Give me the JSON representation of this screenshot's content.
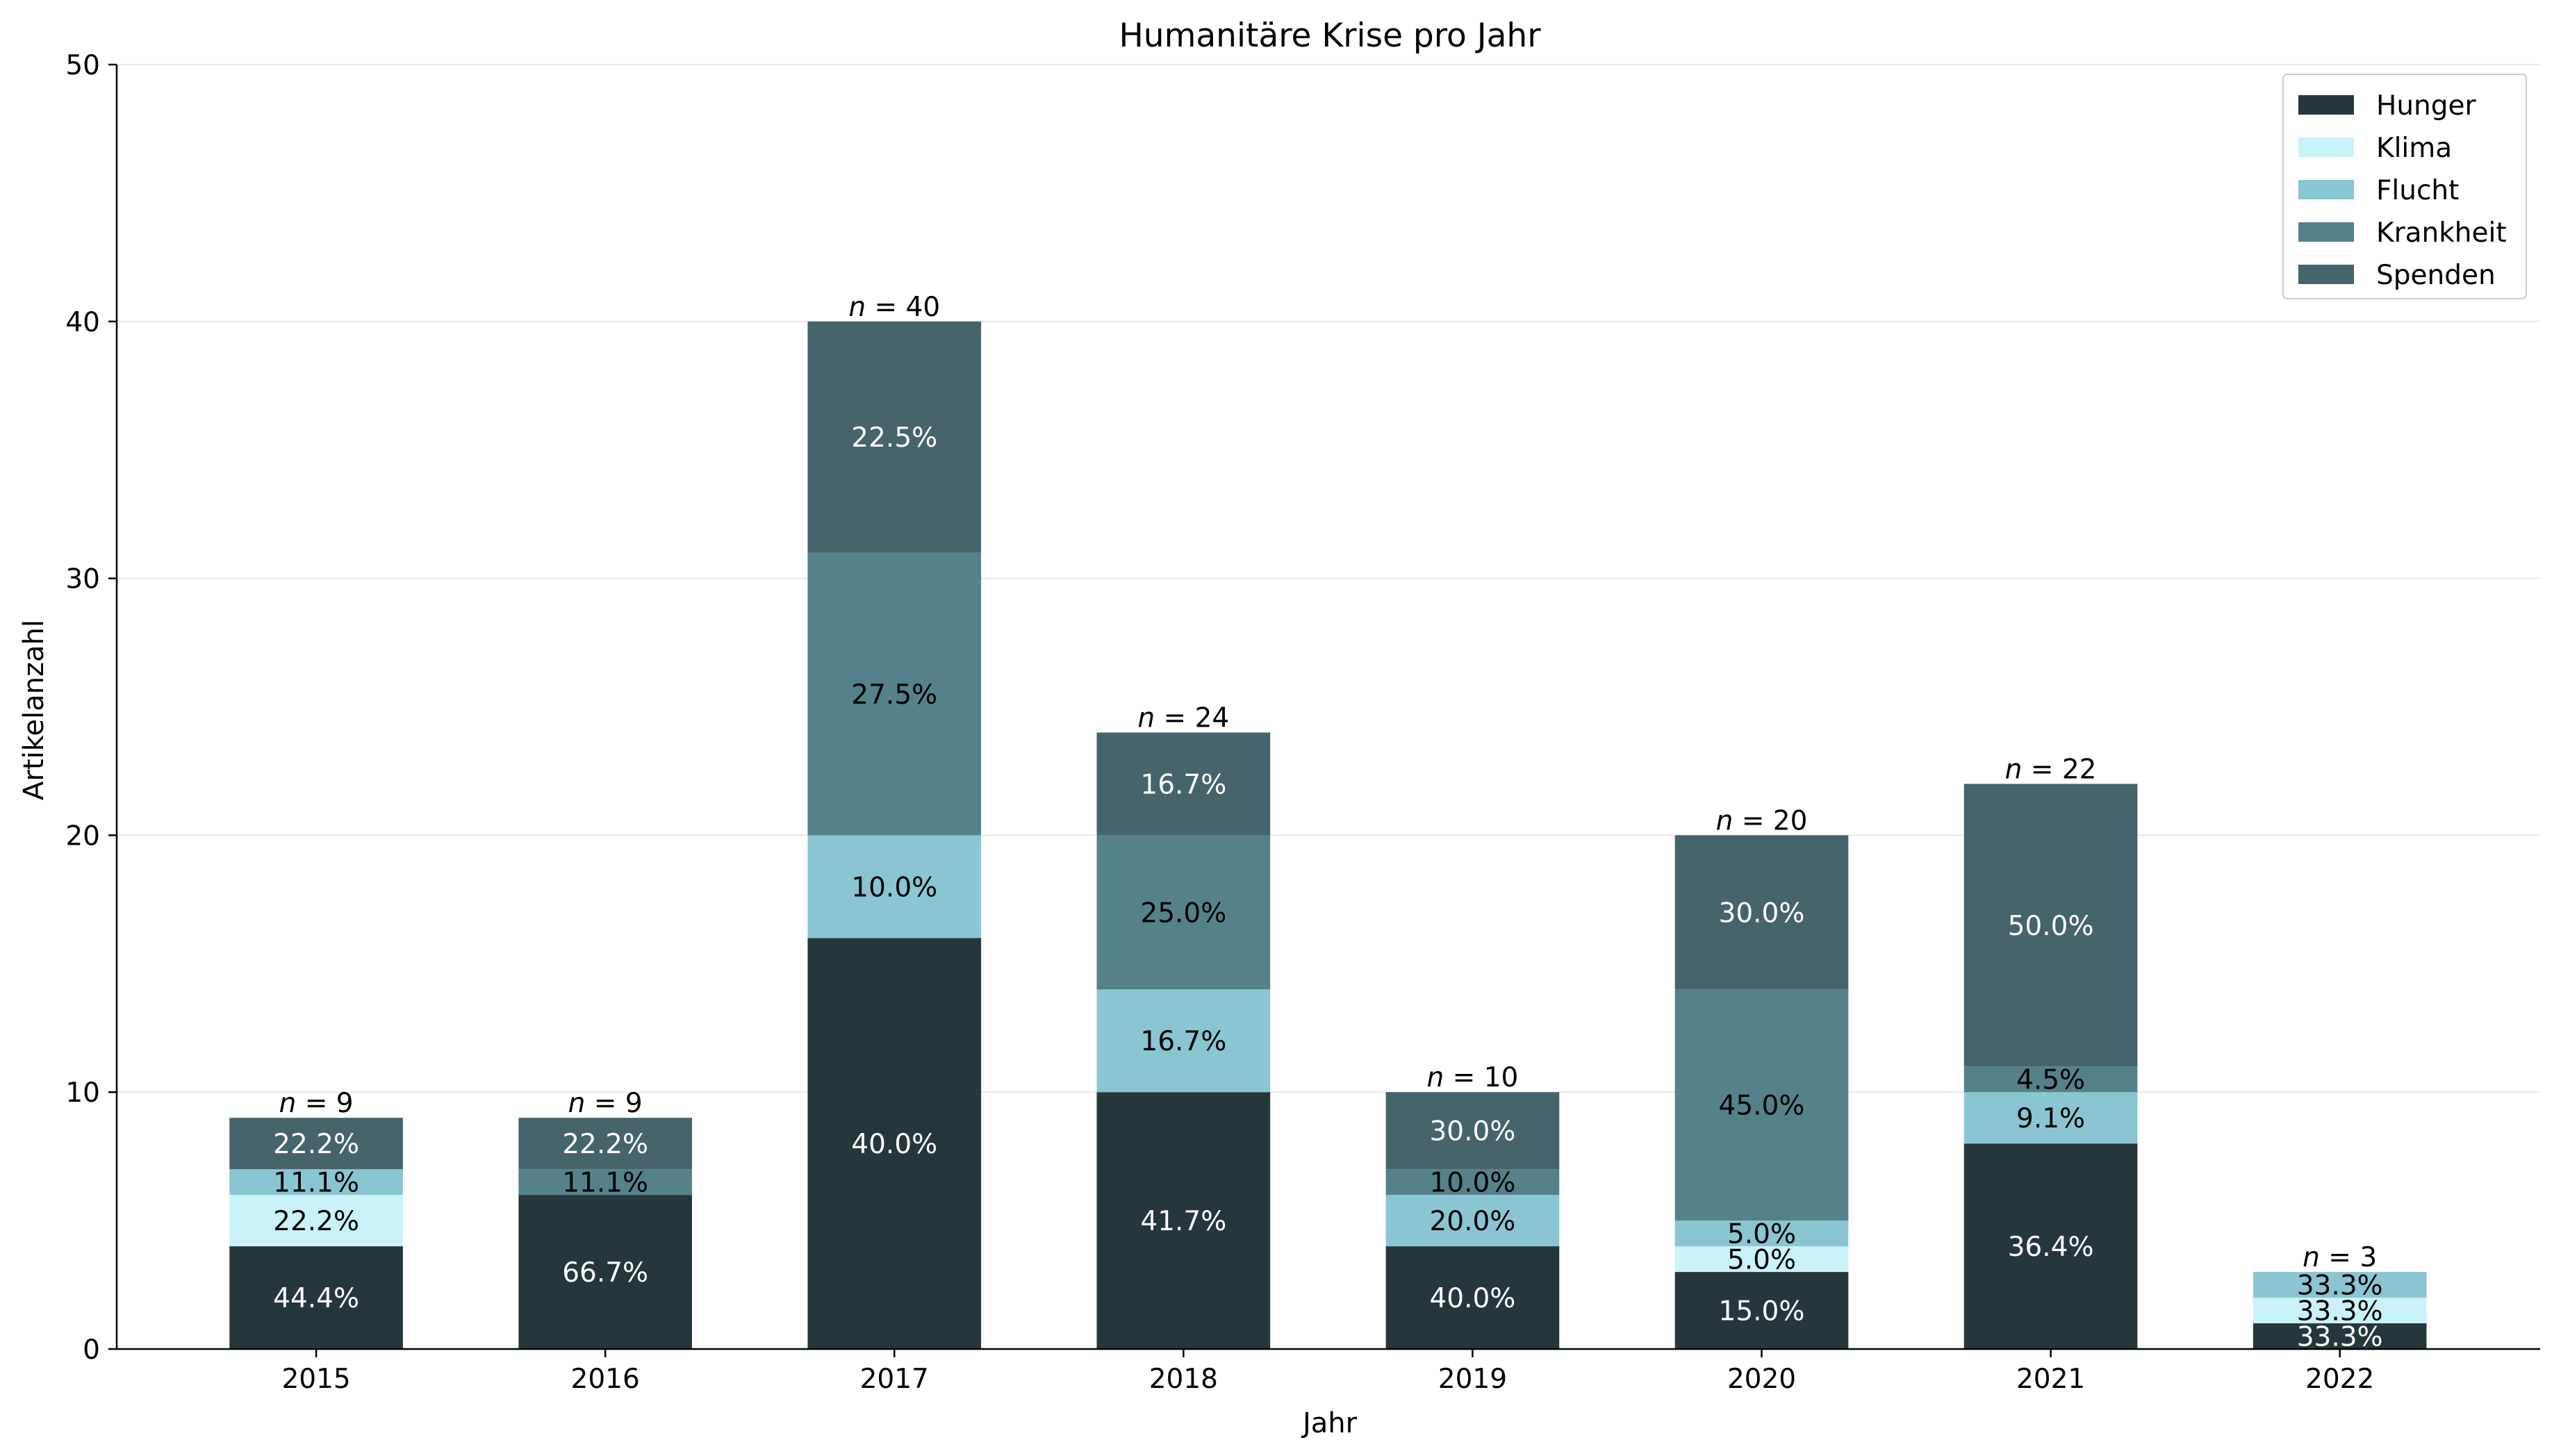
{
  "chart_data": {
    "type": "bar",
    "stacked": true,
    "title": "Humanitäre Krise pro Jahr",
    "xlabel": "Jahr",
    "ylabel": "Artikelanzahl",
    "ylim": [
      0,
      50
    ],
    "yticks": [
      0,
      10,
      20,
      30,
      40,
      50
    ],
    "grid": "horizontal",
    "legend_position": "top-right",
    "categories": [
      "2015",
      "2016",
      "2017",
      "2018",
      "2019",
      "2020",
      "2021",
      "2022"
    ],
    "series": [
      {
        "name": "Hunger",
        "color": "#26373b",
        "values": [
          4,
          6,
          16,
          10,
          4,
          3,
          8,
          1
        ],
        "labels": [
          "44.4%",
          "66.7%",
          "40.0%",
          "41.7%",
          "40.0%",
          "15.0%",
          "36.4%",
          "33.3%"
        ],
        "label_color": "#ffffff"
      },
      {
        "name": "Klima",
        "color": "#caf2f9",
        "values": [
          2,
          0,
          0,
          0,
          0,
          1,
          0,
          1
        ],
        "labels": [
          "22.2%",
          "",
          "",
          "",
          "",
          "5.0%",
          "",
          "33.3%"
        ],
        "label_color": "#000000"
      },
      {
        "name": "Flucht",
        "color": "#8ac5d3",
        "values": [
          1,
          0,
          4,
          4,
          2,
          1,
          2,
          1
        ],
        "labels": [
          "11.1%",
          "",
          "10.0%",
          "16.7%",
          "20.0%",
          "5.0%",
          "9.1%",
          "33.3%"
        ],
        "label_color": "#000000"
      },
      {
        "name": "Krankheit",
        "color": "#55818a",
        "values": [
          0,
          1,
          11,
          6,
          1,
          9,
          1,
          0
        ],
        "labels": [
          "",
          "11.1%",
          "27.5%",
          "25.0%",
          "10.0%",
          "45.0%",
          "4.5%",
          ""
        ],
        "label_color": "#000000"
      },
      {
        "name": "Spenden",
        "color": "#45646b",
        "values": [
          2,
          2,
          9,
          4,
          3,
          6,
          11,
          0
        ],
        "labels": [
          "22.2%",
          "22.2%",
          "22.5%",
          "16.7%",
          "30.0%",
          "30.0%",
          "50.0%",
          ""
        ],
        "label_color": "#ffffff"
      }
    ],
    "totals": [
      9,
      9,
      40,
      24,
      10,
      20,
      22,
      3
    ],
    "total_labels": [
      "n = 9",
      "n = 9",
      "n = 40",
      "n = 24",
      "n = 10",
      "n = 20",
      "n = 22",
      "n = 3"
    ]
  }
}
